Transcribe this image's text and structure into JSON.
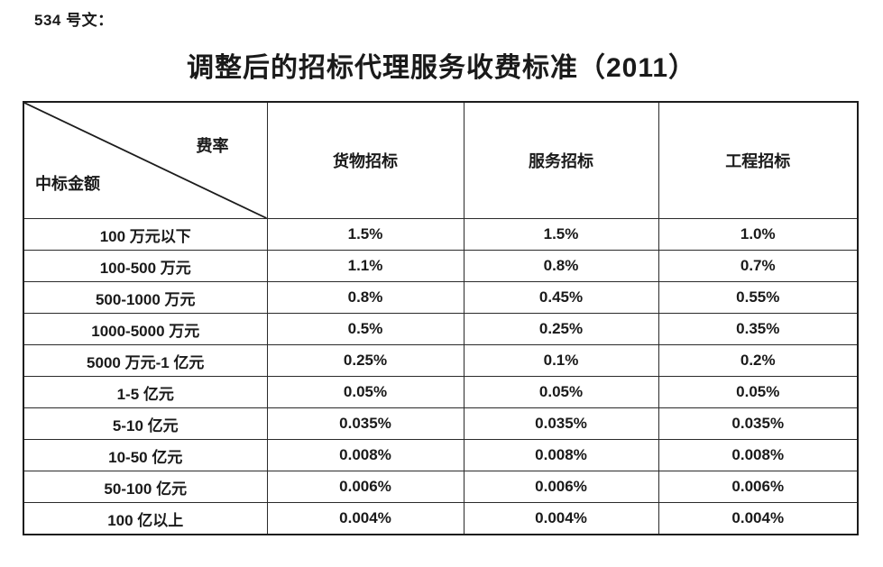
{
  "doc_number": "534 号文：",
  "title": "调整后的招标代理服务收费标准（2011）",
  "table": {
    "corner": {
      "top_right": "费率",
      "bottom_left": "中标金额"
    },
    "columns": [
      "货物招标",
      "服务招标",
      "工程招标"
    ],
    "rows": [
      {
        "label": "100 万元以下",
        "values": [
          "1.5%",
          "1.5%",
          "1.0%"
        ]
      },
      {
        "label": "100-500 万元",
        "values": [
          "1.1%",
          "0.8%",
          "0.7%"
        ]
      },
      {
        "label": "500-1000 万元",
        "values": [
          "0.8%",
          "0.45%",
          "0.55%"
        ]
      },
      {
        "label": "1000-5000 万元",
        "values": [
          "0.5%",
          "0.25%",
          "0.35%"
        ]
      },
      {
        "label": "5000 万元-1 亿元",
        "values": [
          "0.25%",
          "0.1%",
          "0.2%"
        ]
      },
      {
        "label": "1-5 亿元",
        "values": [
          "0.05%",
          "0.05%",
          "0.05%"
        ]
      },
      {
        "label": "5-10 亿元",
        "values": [
          "0.035%",
          "0.035%",
          "0.035%"
        ]
      },
      {
        "label": "10-50 亿元",
        "values": [
          "0.008%",
          "0.008%",
          "0.008%"
        ]
      },
      {
        "label": "50-100 亿元",
        "values": [
          "0.006%",
          "0.006%",
          "0.006%"
        ]
      },
      {
        "label": "100 亿以上",
        "values": [
          "0.004%",
          "0.004%",
          "0.004%"
        ]
      }
    ]
  }
}
